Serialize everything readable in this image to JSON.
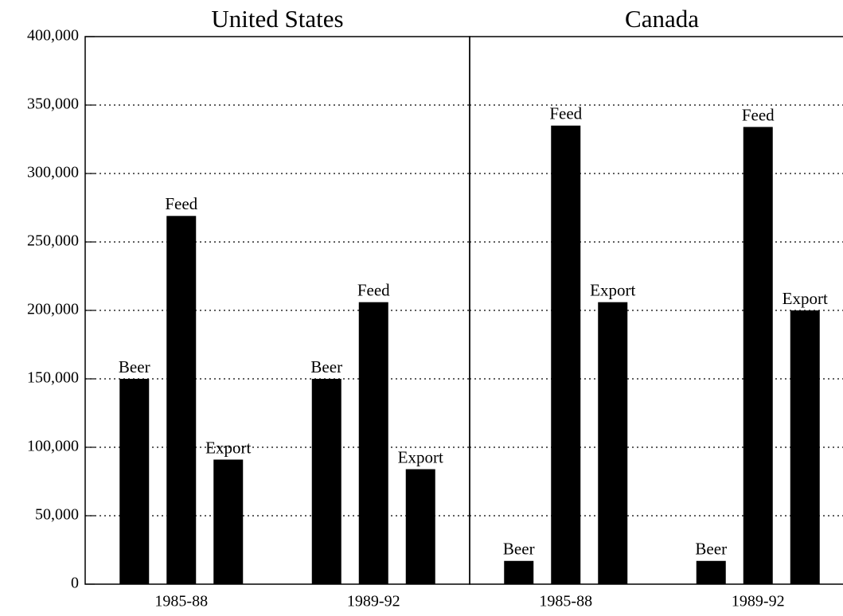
{
  "chart_data": [
    {
      "type": "bar",
      "title": "United States",
      "categories": [
        "1985-88",
        "1989-92"
      ],
      "series": [
        {
          "name": "Beer",
          "color": "#000000",
          "values": [
            150000,
            150000
          ]
        },
        {
          "name": "Feed",
          "color": "#000000",
          "values": [
            269000,
            206000
          ]
        },
        {
          "name": "Export",
          "color": "#000000",
          "values": [
            91000,
            84000
          ]
        }
      ],
      "ylim": [
        0,
        400000
      ],
      "yticks": [
        0,
        {
          "value": 50000,
          "label": "50,000"
        },
        {
          "value": 100000,
          "label": "100,000"
        },
        {
          "value": 150000,
          "label": "150,000"
        },
        {
          "value": 200000,
          "label": "200,000"
        },
        {
          "value": 250000,
          "label": "250,000"
        },
        {
          "value": 300000,
          "label": "300,000"
        },
        {
          "value": 350000,
          "label": "350,000"
        },
        {
          "value": 400000,
          "label": "400,000"
        }
      ],
      "grid": true
    },
    {
      "type": "bar",
      "title": "Canada",
      "categories": [
        "1985-88",
        "1989-92"
      ],
      "series": [
        {
          "name": "Beer",
          "color": "#000000",
          "values": [
            17000,
            17000
          ]
        },
        {
          "name": "Feed",
          "color": "#000000",
          "values": [
            335000,
            334000
          ]
        },
        {
          "name": "Export",
          "color": "#000000",
          "values": [
            206000,
            200000
          ]
        }
      ],
      "ylim": [
        0,
        400000
      ],
      "yticks": [
        0,
        50000,
        100000,
        150000,
        200000,
        250000,
        300000,
        350000,
        400000
      ],
      "grid": true
    }
  ]
}
